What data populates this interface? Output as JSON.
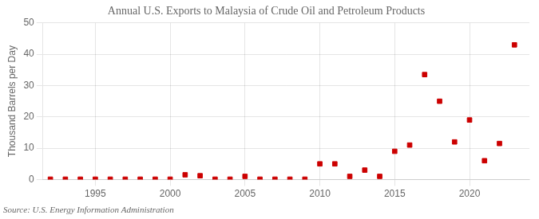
{
  "chart_data": {
    "type": "scatter",
    "title": "Annual U.S. Exports to Malaysia of Crude Oil and Petroleum Products",
    "ylabel": "Thousand Barrels per Day",
    "source": "Source: U.S. Energy Information Administration",
    "x": [
      1992,
      1993,
      1994,
      1995,
      1996,
      1997,
      1998,
      1999,
      2000,
      2001,
      2002,
      2003,
      2004,
      2005,
      2006,
      2007,
      2008,
      2009,
      2010,
      2011,
      2012,
      2013,
      2014,
      2015,
      2016,
      2017,
      2018,
      2019,
      2020,
      2021,
      2022,
      2023
    ],
    "values": [
      0.1,
      0.1,
      0.1,
      0.1,
      0.1,
      0.1,
      0.1,
      0.1,
      0.1,
      1.5,
      1.2,
      0.1,
      0.1,
      1.0,
      0.1,
      0.1,
      0.1,
      0.1,
      5.0,
      5.0,
      1.0,
      3.0,
      1.0,
      9.0,
      11.0,
      33.5,
      25.0,
      12.0,
      19.0,
      6.0,
      11.5,
      43.0
    ],
    "color": "#cc0000",
    "marker": "square",
    "xlim": [
      1991.5,
      2024
    ],
    "xticks": [
      1995,
      2000,
      2005,
      2010,
      2015,
      2020
    ],
    "ylim": [
      0,
      50
    ],
    "yticks": [
      0,
      10,
      20,
      30,
      40,
      50
    ],
    "grid": true
  }
}
